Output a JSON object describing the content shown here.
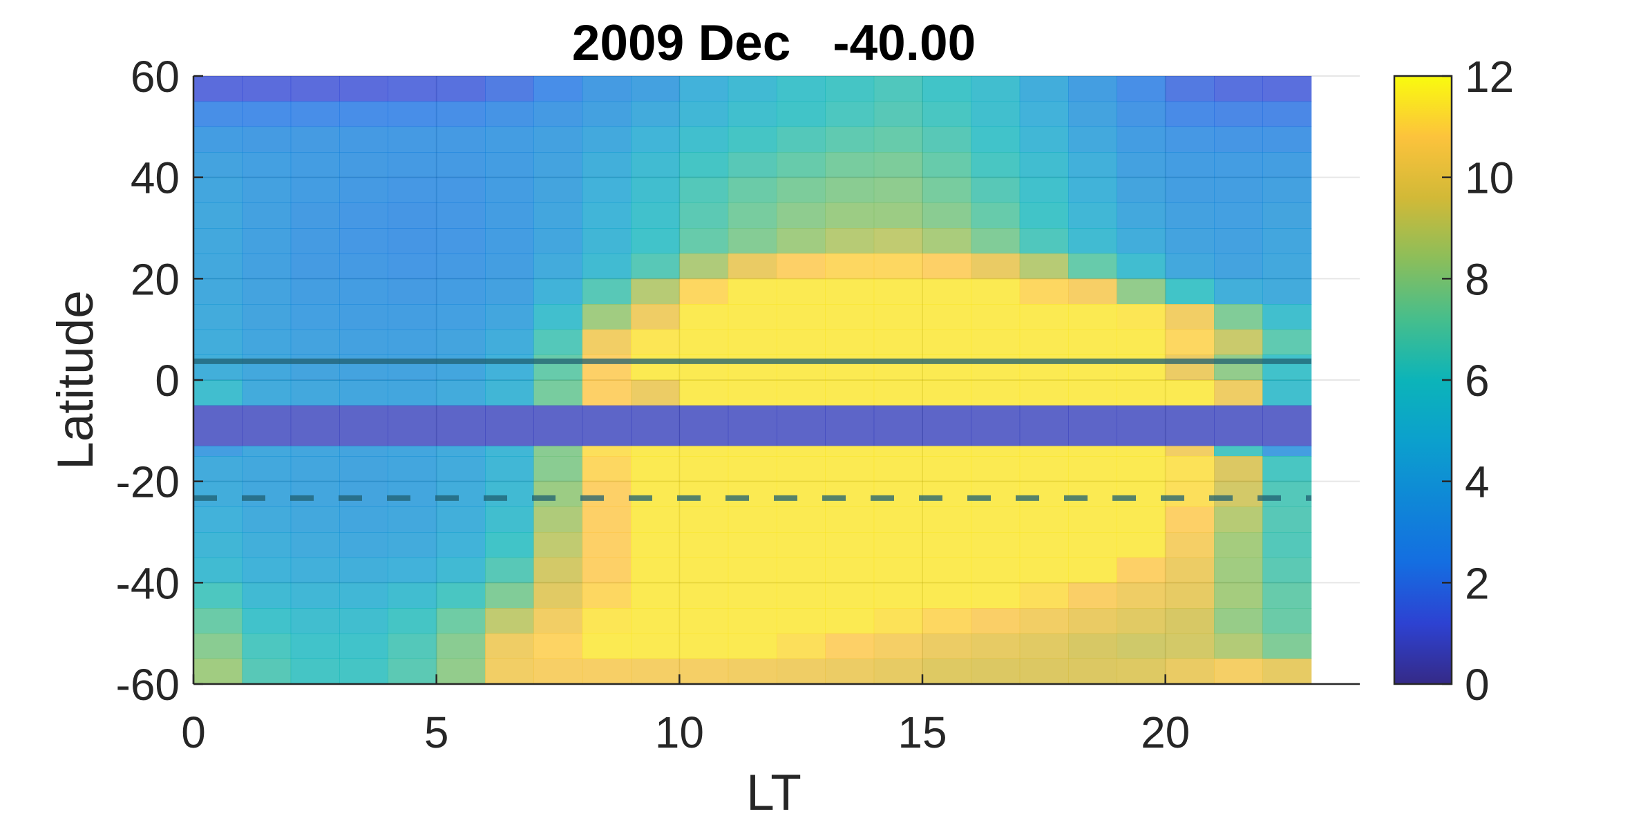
{
  "chart_data": {
    "type": "heatmap",
    "title": "2009 Dec   -40.00",
    "xlabel": "LT",
    "ylabel": "Latitude",
    "xlim": [
      0,
      24
    ],
    "ylim": [
      -60,
      60
    ],
    "x_ticks": [
      0,
      5,
      10,
      15,
      20
    ],
    "y_ticks": [
      -60,
      -40,
      -20,
      0,
      20,
      40,
      60
    ],
    "grid": true,
    "colormap": "parula",
    "clim": [
      0,
      12
    ],
    "colorbar_ticks": [
      0,
      2,
      4,
      6,
      8,
      10,
      12
    ],
    "x_centers": [
      0.5,
      1.5,
      2.5,
      3.5,
      4.5,
      5.5,
      6.5,
      7.5,
      8.5,
      9.5,
      10.5,
      11.5,
      12.5,
      13.5,
      14.5,
      15.5,
      16.5,
      17.5,
      18.5,
      19.5,
      20.5,
      21.5,
      22.5
    ],
    "y_bands": [
      {
        "lat": [
          55,
          60
        ],
        "values": [
          1.2,
          1.2,
          1.2,
          1.2,
          1.3,
          1.4,
          1.8,
          2.4,
          3.2,
          3.6,
          4.6,
          5.2,
          5.8,
          6.1,
          6.4,
          6.0,
          5.5,
          4.3,
          3.4,
          2.5,
          1.7,
          1.4,
          1.3
        ]
      },
      {
        "lat": [
          50,
          55
        ],
        "values": [
          2.5,
          2.4,
          2.4,
          2.4,
          2.4,
          2.5,
          2.8,
          3.1,
          3.6,
          4.2,
          5.0,
          5.6,
          6.0,
          6.3,
          6.6,
          6.2,
          5.6,
          4.6,
          3.7,
          2.9,
          2.3,
          2.2,
          2.2
        ]
      },
      {
        "lat": [
          45,
          50
        ],
        "values": [
          3.3,
          3.2,
          3.2,
          3.1,
          3.1,
          3.1,
          3.3,
          3.6,
          4.1,
          4.8,
          5.6,
          6.1,
          6.5,
          6.8,
          7.0,
          6.6,
          5.9,
          5.0,
          4.1,
          3.3,
          3.0,
          2.9,
          2.9
        ]
      },
      {
        "lat": [
          40,
          45
        ],
        "values": [
          3.7,
          3.5,
          3.3,
          3.2,
          3.1,
          3.1,
          3.3,
          3.7,
          4.4,
          5.3,
          6.1,
          6.6,
          7.0,
          7.4,
          7.5,
          7.0,
          6.2,
          5.4,
          4.5,
          3.6,
          3.3,
          3.3,
          3.4
        ]
      },
      {
        "lat": [
          35,
          40
        ],
        "values": [
          3.9,
          3.6,
          3.3,
          3.1,
          3.0,
          3.0,
          3.3,
          3.8,
          4.6,
          5.5,
          6.5,
          7.1,
          7.5,
          7.8,
          7.9,
          7.4,
          6.6,
          5.7,
          4.7,
          3.8,
          3.4,
          3.4,
          3.6
        ]
      },
      {
        "lat": [
          30,
          35
        ],
        "values": [
          4.0,
          3.6,
          3.2,
          3.0,
          2.9,
          3.0,
          3.3,
          3.9,
          4.8,
          5.7,
          6.7,
          7.4,
          7.9,
          8.2,
          8.2,
          7.8,
          7.0,
          6.0,
          5.0,
          4.0,
          3.6,
          3.5,
          3.8
        ]
      },
      {
        "lat": [
          25,
          30
        ],
        "values": [
          4.0,
          3.6,
          3.2,
          3.0,
          2.9,
          3.0,
          3.3,
          3.9,
          4.9,
          5.9,
          7.0,
          7.7,
          8.3,
          8.8,
          9.0,
          8.5,
          7.6,
          6.4,
          5.3,
          4.3,
          3.7,
          3.6,
          3.9
        ]
      },
      {
        "lat": [
          20,
          25
        ],
        "values": [
          4.0,
          3.6,
          3.2,
          3.1,
          3.0,
          3.1,
          3.4,
          4.2,
          5.3,
          6.6,
          8.6,
          10.1,
          10.8,
          11.0,
          11.0,
          10.8,
          10.1,
          8.8,
          7.0,
          5.4,
          4.0,
          3.7,
          4.0
        ]
      },
      {
        "lat": [
          15,
          20
        ],
        "values": [
          4.1,
          3.7,
          3.4,
          3.3,
          3.2,
          3.3,
          3.6,
          4.7,
          6.6,
          8.8,
          11.0,
          11.5,
          11.5,
          11.5,
          11.5,
          11.5,
          11.5,
          11.0,
          10.6,
          8.0,
          6.0,
          4.4,
          4.2
        ]
      },
      {
        "lat": [
          10,
          15
        ],
        "values": [
          4.2,
          3.8,
          3.5,
          3.4,
          3.4,
          3.5,
          3.9,
          5.6,
          8.3,
          10.3,
          11.5,
          11.5,
          11.5,
          11.5,
          11.5,
          11.5,
          11.5,
          11.5,
          11.5,
          11.4,
          10.4,
          7.6,
          5.6
        ]
      },
      {
        "lat": [
          5,
          10
        ],
        "values": [
          4.3,
          3.9,
          3.7,
          3.6,
          3.6,
          3.8,
          4.3,
          6.5,
          10.4,
          11.4,
          11.5,
          11.5,
          11.5,
          11.5,
          11.5,
          11.5,
          11.5,
          11.5,
          11.5,
          11.5,
          11.0,
          9.2,
          6.8
        ]
      },
      {
        "lat": [
          0,
          5
        ],
        "values": [
          4.4,
          4.0,
          3.8,
          3.7,
          3.7,
          3.9,
          4.6,
          7.0,
          10.8,
          11.5,
          11.5,
          11.5,
          11.5,
          11.5,
          11.5,
          11.5,
          11.5,
          11.5,
          11.5,
          11.5,
          10.2,
          8.0,
          5.8
        ]
      },
      {
        "lat": [
          -5,
          0
        ],
        "values": [
          5.5,
          4.2,
          4.0,
          3.9,
          3.9,
          4.2,
          4.9,
          7.4,
          10.8,
          10.2,
          11.5,
          11.5,
          11.5,
          11.5,
          11.5,
          11.5,
          11.5,
          11.5,
          11.5,
          11.5,
          11.5,
          10.3,
          5.6
        ]
      },
      {
        "lat": [
          -13,
          -5
        ],
        "values": [
          0.8,
          0.8,
          0.8,
          0.8,
          0.8,
          0.8,
          0.8,
          0.8,
          0.8,
          0.8,
          0.8,
          0.8,
          0.8,
          0.8,
          0.8,
          0.8,
          0.8,
          0.8,
          0.8,
          0.8,
          0.8,
          0.8,
          0.8
        ]
      },
      {
        "lat": [
          -15,
          -13
        ],
        "values": [
          3.4,
          4.0,
          3.9,
          3.8,
          3.9,
          4.2,
          5.0,
          7.8,
          11.2,
          11.5,
          11.5,
          11.5,
          11.5,
          11.5,
          11.5,
          11.5,
          11.5,
          11.5,
          11.5,
          11.5,
          10.4,
          6.2,
          3.4
        ]
      },
      {
        "lat": [
          -20,
          -15
        ],
        "values": [
          4.2,
          4.0,
          3.9,
          3.8,
          3.9,
          4.2,
          5.0,
          7.8,
          11.0,
          11.5,
          11.5,
          11.5,
          11.5,
          11.5,
          11.5,
          11.5,
          11.5,
          11.5,
          11.5,
          11.5,
          11.3,
          9.6,
          6.2
        ]
      },
      {
        "lat": [
          -25,
          -20
        ],
        "values": [
          4.3,
          4.0,
          3.9,
          3.8,
          3.9,
          4.3,
          5.2,
          8.2,
          10.8,
          11.5,
          11.5,
          11.5,
          11.5,
          11.5,
          11.5,
          11.5,
          11.5,
          11.5,
          11.5,
          11.5,
          11.2,
          9.4,
          6.5
        ]
      },
      {
        "lat": [
          -30,
          -25
        ],
        "values": [
          4.6,
          4.2,
          4.0,
          3.9,
          4.0,
          4.4,
          5.5,
          8.6,
          10.8,
          11.5,
          11.5,
          11.5,
          11.5,
          11.5,
          11.5,
          11.5,
          11.5,
          11.5,
          11.5,
          11.5,
          10.8,
          8.8,
          6.6
        ]
      },
      {
        "lat": [
          -35,
          -30
        ],
        "values": [
          4.9,
          4.4,
          4.2,
          4.1,
          4.2,
          4.7,
          6.0,
          9.0,
          10.8,
          11.5,
          11.5,
          11.5,
          11.5,
          11.5,
          11.5,
          11.5,
          11.5,
          11.5,
          11.5,
          11.5,
          10.5,
          8.4,
          6.5
        ]
      },
      {
        "lat": [
          -40,
          -35
        ],
        "values": [
          5.3,
          4.7,
          4.5,
          4.4,
          4.6,
          5.2,
          6.6,
          9.4,
          10.8,
          11.5,
          11.5,
          11.5,
          11.5,
          11.5,
          11.5,
          11.5,
          11.5,
          11.5,
          11.5,
          10.8,
          10.2,
          8.3,
          6.7
        ]
      },
      {
        "lat": [
          -45,
          -40
        ],
        "values": [
          6.3,
          5.2,
          5.0,
          5.0,
          5.4,
          6.2,
          7.6,
          9.8,
          11.0,
          11.5,
          11.5,
          11.5,
          11.5,
          11.5,
          11.5,
          11.5,
          11.5,
          11.2,
          10.7,
          10.3,
          10.0,
          8.4,
          7.0
        ]
      },
      {
        "lat": [
          -50,
          -45
        ],
        "values": [
          7.1,
          5.8,
          5.5,
          5.5,
          6.1,
          7.2,
          9.0,
          10.4,
          11.4,
          11.5,
          11.5,
          11.5,
          11.5,
          11.5,
          11.3,
          11.0,
          10.7,
          10.4,
          10.1,
          9.8,
          9.5,
          8.1,
          7.1
        ]
      },
      {
        "lat": [
          -55,
          -50
        ],
        "values": [
          7.8,
          6.3,
          5.9,
          5.9,
          6.5,
          7.8,
          10.3,
          10.9,
          11.5,
          11.5,
          11.5,
          11.5,
          11.2,
          10.8,
          10.5,
          10.2,
          10.0,
          9.8,
          9.5,
          9.3,
          9.4,
          8.7,
          7.6
        ]
      },
      {
        "lat": [
          -60,
          -55
        ],
        "values": [
          8.3,
          6.6,
          6.1,
          6.1,
          6.7,
          8.0,
          10.4,
          10.6,
          10.6,
          10.5,
          10.5,
          10.4,
          10.3,
          10.2,
          10.0,
          9.7,
          9.6,
          9.6,
          9.6,
          9.7,
          10.1,
          10.5,
          10.0
        ]
      }
    ],
    "overlay_lines": [
      {
        "style": "solid",
        "lat": 3.7,
        "color": "#1f5f70"
      },
      {
        "style": "dashed",
        "lat": -23.3,
        "color": "#1f5f70"
      }
    ]
  }
}
